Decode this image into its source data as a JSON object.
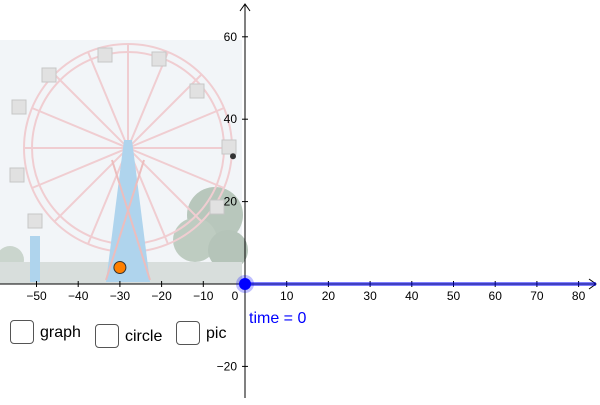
{
  "graph": {
    "x_axis": {
      "ticks": [
        "−50",
        "−40",
        "−30",
        "−20",
        "−10",
        "0",
        "10",
        "20",
        "30",
        "40",
        "50",
        "60",
        "70",
        "80"
      ],
      "range": [
        -58,
        86
      ]
    },
    "y_axis": {
      "ticks": [
        "60",
        "40",
        "20",
        "−20"
      ],
      "range": [
        -27,
        68
      ]
    },
    "colors": {
      "slider": "#0000ff",
      "orange_point": "#ff7f00",
      "black_point": "#333333",
      "axes": "#000000"
    },
    "background_image": "ferris-wheel-photo"
  },
  "slider": {
    "label": "time = 0",
    "value": 0
  },
  "checkboxes": [
    {
      "label": "graph",
      "checked": false
    },
    {
      "label": "circle",
      "checked": false
    },
    {
      "label": "pic",
      "checked": false
    }
  ],
  "points": {
    "orange": {
      "x": -30,
      "y": 4
    },
    "black": {
      "x": 0,
      "y": 31
    }
  }
}
